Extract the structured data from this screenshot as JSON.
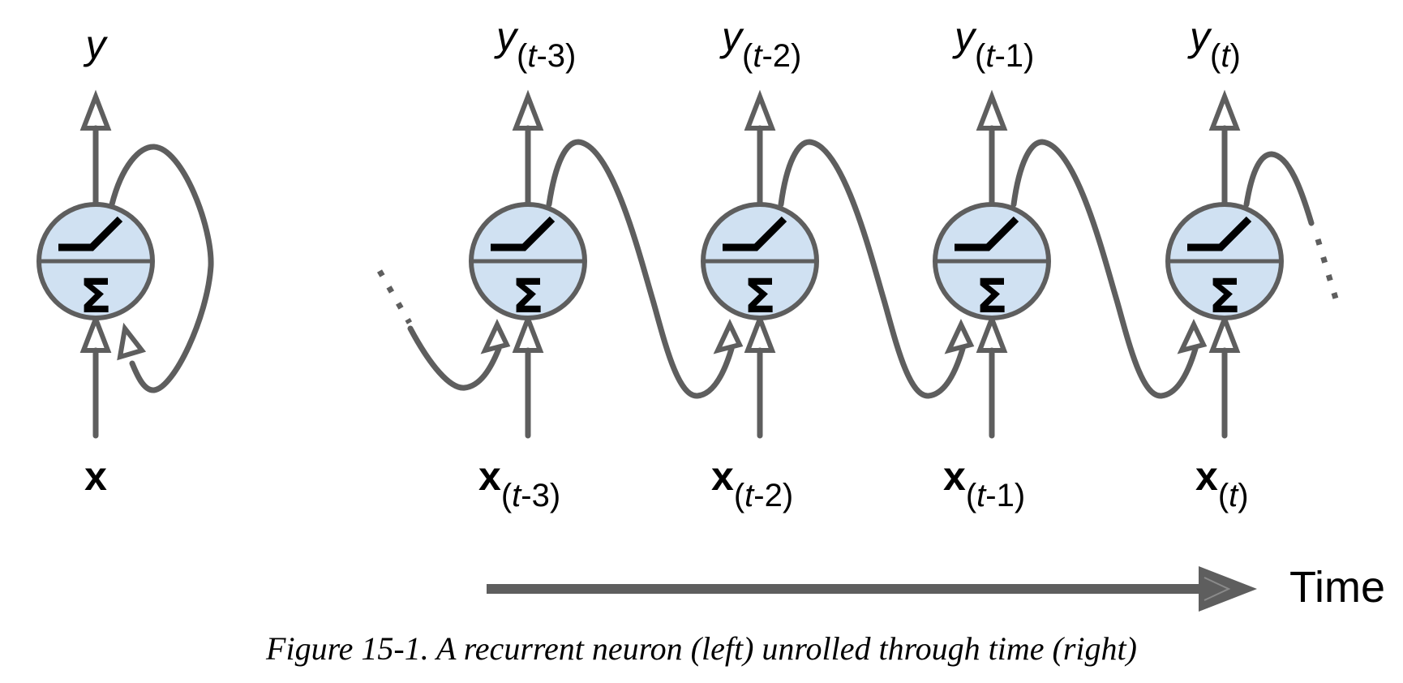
{
  "recurrent_neuron": {
    "output_label": "y",
    "input_label": "x"
  },
  "neuron_symbols": {
    "sum": "Σ"
  },
  "timesteps": [
    {
      "output_base": "y",
      "input_base": "x",
      "sub_open": "(",
      "sub_t": "t",
      "sub_rest": "-3)"
    },
    {
      "output_base": "y",
      "input_base": "x",
      "sub_open": "(",
      "sub_t": "t",
      "sub_rest": "-2)"
    },
    {
      "output_base": "y",
      "input_base": "x",
      "sub_open": "(",
      "sub_t": "t",
      "sub_rest": "-1)"
    },
    {
      "output_base": "y",
      "input_base": "x",
      "sub_open": "(",
      "sub_t": "t",
      "sub_rest": ")"
    }
  ],
  "time_axis": {
    "label": "Time"
  },
  "caption": "Figure 15-1. A recurrent neuron (left) unrolled through time (right)",
  "colors": {
    "neuron_fill": "#d0e1f2",
    "stroke": "#5e5e5e",
    "text": "#000000"
  }
}
